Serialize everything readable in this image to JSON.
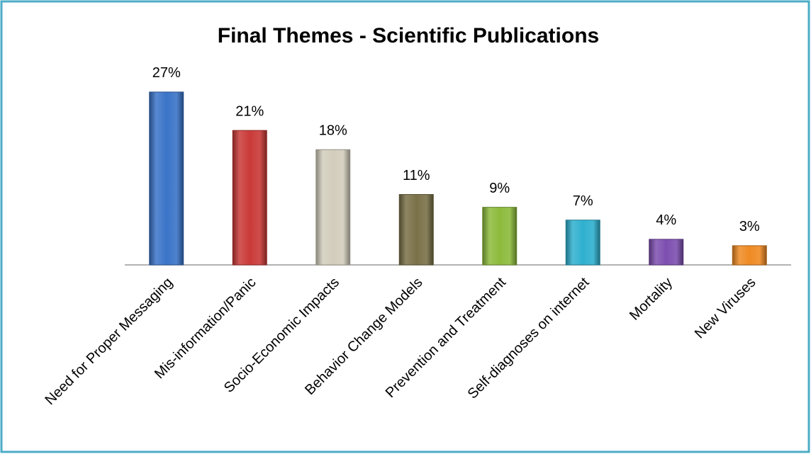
{
  "chart_data": {
    "type": "bar",
    "title": "Final Themes - Scientific Publications",
    "categories": [
      "Need for Proper Messaging",
      "Mis-information/Panic",
      "Socio-Economic Impacts",
      "Behavior Change Models",
      "Prevention and Treatment",
      "Self-diagnoses on internet",
      "Mortality",
      "New Viruses"
    ],
    "values": [
      27,
      21,
      18,
      11,
      9,
      7,
      4,
      3
    ],
    "value_labels": [
      "27%",
      "21%",
      "18%",
      "11%",
      "9%",
      "7%",
      "4%",
      "3%"
    ],
    "colors": [
      "#3a74c8",
      "#c93a38",
      "#d2cdbc",
      "#7a7148",
      "#8dbb3c",
      "#2fb0cf",
      "#7d4fb0",
      "#ef8a24"
    ]
  }
}
